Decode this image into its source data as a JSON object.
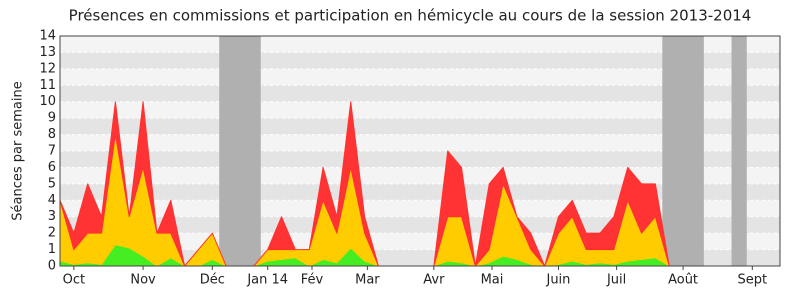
{
  "chart_data": {
    "type": "stacked_area",
    "title": "Présences en commissions et participation en hémicycle au cours de la session 2013-2014",
    "y_label": "Séances par semaine",
    "x": [
      0,
      1,
      2,
      3,
      4,
      5,
      6,
      7,
      8,
      9,
      10,
      11,
      12,
      13,
      14,
      15,
      16,
      17,
      18,
      19,
      20,
      21,
      22,
      23,
      24,
      25,
      26,
      27,
      28,
      29,
      30,
      31,
      32,
      33,
      34,
      35,
      36,
      37,
      38,
      39,
      40,
      41,
      42,
      43,
      44,
      45,
      46,
      47,
      48,
      49,
      50,
      51,
      52
    ],
    "series": [
      {
        "color": "#44ee22",
        "values": [
          0.3,
          0.1,
          0.2,
          0.1,
          1.3,
          1.1,
          0.6,
          0,
          0.5,
          0,
          0,
          0.4,
          0,
          0,
          0,
          0.3,
          0.4,
          0.5,
          0,
          0.4,
          0.2,
          1.1,
          0.3,
          0,
          0,
          0,
          0,
          0,
          0.3,
          0.2,
          0,
          0.2,
          0.6,
          0.4,
          0.1,
          0,
          0.1,
          0.3,
          0.1,
          0.2,
          0.1,
          0.3,
          0.4,
          0.5,
          0,
          0,
          0,
          0,
          0,
          0,
          0,
          0,
          0
        ]
      },
      {
        "color": "#ffcc00",
        "values": [
          3.7,
          0.9,
          1.8,
          1.9,
          6.7,
          1.9,
          5.4,
          2,
          1.5,
          0,
          1,
          1.6,
          0,
          0,
          0,
          0.7,
          0.6,
          0.5,
          1,
          3.6,
          1.8,
          4.9,
          1.7,
          0,
          0,
          0,
          0,
          0,
          2.7,
          2.8,
          0,
          0.8,
          4.4,
          2.6,
          0.9,
          0,
          1.9,
          2.7,
          0.9,
          0.8,
          0.9,
          3.7,
          1.6,
          2.5,
          0,
          0,
          0,
          0,
          0,
          0,
          0,
          0,
          0
        ]
      },
      {
        "color": "#ff3333",
        "values": [
          0,
          1,
          3,
          1,
          2,
          0,
          4,
          0,
          2,
          0,
          0,
          0,
          0,
          0,
          0,
          0,
          2,
          0,
          0,
          2,
          1,
          4,
          1,
          0,
          0,
          0,
          0,
          0,
          4,
          3,
          0,
          4,
          1,
          0,
          1,
          0,
          1,
          1,
          1,
          1,
          2,
          2,
          3,
          2,
          0,
          0,
          0,
          0,
          0,
          0,
          0,
          0,
          0
        ]
      }
    ],
    "xlim": [
      0,
      52
    ],
    "xticks": [
      {
        "value": 1,
        "label": "Oct"
      },
      {
        "value": 6,
        "label": "Nov"
      },
      {
        "value": 11,
        "label": "Déc"
      },
      {
        "value": 15,
        "label": "Jan 14"
      },
      {
        "value": 18.2,
        "label": "Fév"
      },
      {
        "value": 22.2,
        "label": "Mar"
      },
      {
        "value": 27,
        "label": "Avr"
      },
      {
        "value": 31.2,
        "label": "Mai"
      },
      {
        "value": 36,
        "label": "Juin"
      },
      {
        "value": 40.2,
        "label": "Juil"
      },
      {
        "value": 45,
        "label": "Août"
      },
      {
        "value": 50,
        "label": "Sept"
      }
    ],
    "ylim": [
      0,
      14
    ],
    "yticks": [
      0,
      1,
      2,
      3,
      4,
      5,
      6,
      7,
      8,
      9,
      10,
      11,
      12,
      13,
      14
    ],
    "shaded_periods": [
      [
        11.5,
        14.5
      ],
      [
        43.5,
        46.5
      ],
      [
        48.5,
        49.6
      ]
    ],
    "grid": true
  }
}
